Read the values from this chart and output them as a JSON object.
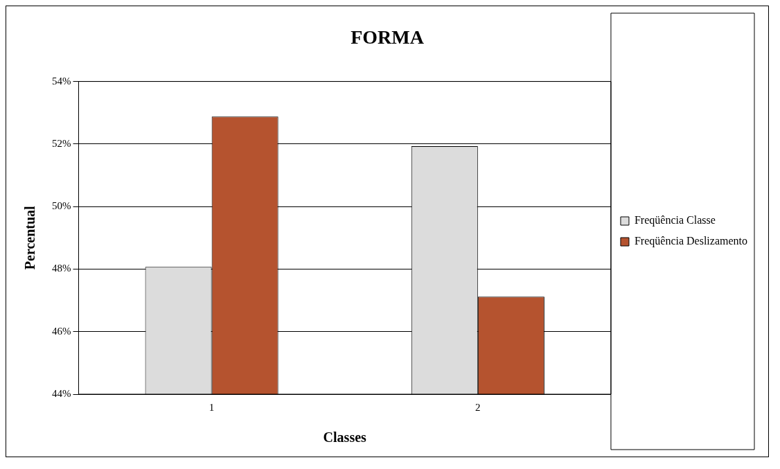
{
  "chart_data": {
    "type": "bar",
    "title": "FORMA",
    "xlabel": "Classes",
    "ylabel": "Percentual",
    "categories": [
      "1",
      "2"
    ],
    "series": [
      {
        "name": "Freqüência Classe",
        "color": "#dcdcdc",
        "values": [
          48.07,
          51.93
        ]
      },
      {
        "name": "Freqüência Deslizamento",
        "color": "#b5532f",
        "values": [
          52.88,
          47.12
        ]
      }
    ],
    "ylim": [
      44,
      54
    ],
    "yticks": [
      {
        "value": 44,
        "label": "44%"
      },
      {
        "value": 46,
        "label": "46%"
      },
      {
        "value": 48,
        "label": "48%"
      },
      {
        "value": 50,
        "label": "50%"
      },
      {
        "value": 52,
        "label": "52%"
      },
      {
        "value": 54,
        "label": "54%"
      }
    ],
    "grid": "y",
    "legend": "right"
  }
}
